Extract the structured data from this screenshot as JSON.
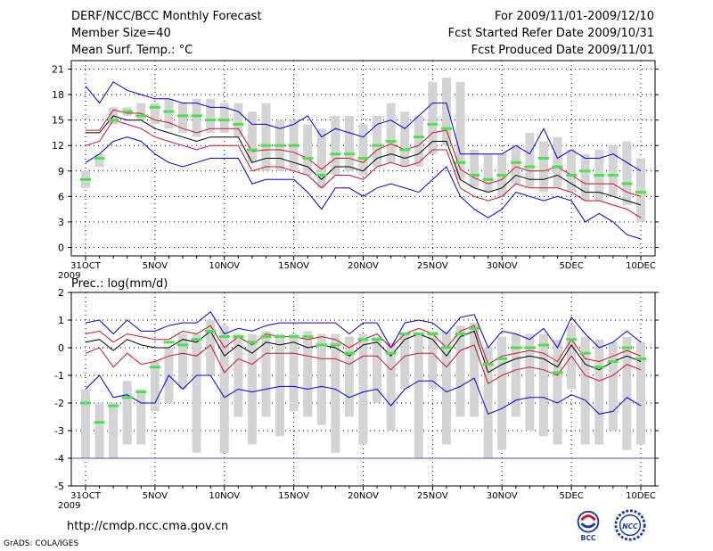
{
  "header": {
    "title_left": "DERF/NCC/BCC Monthly Forecast",
    "member_size": "Member Size=40",
    "variable": "Mean Surf. Temp.: °C",
    "period": "For 2009/11/01-2009/12/10",
    "start_date": "Fcst Started Refer Date 2009/10/31",
    "produced": "Fcst Produced Date 2009/11/01"
  },
  "footer": {
    "url": "http://cmdp.ncc.cma.gov.cn",
    "grads": "GrADS: COLA/IGES",
    "logo_bcc": "BCC",
    "logo_ncc": "NCC"
  },
  "colors": {
    "box": "#d4d4d4",
    "green": "#4be34b",
    "mean": "#000000",
    "inner": "#d0102a",
    "outer": "#0000dd",
    "grid": "#000000"
  },
  "chart_data": [
    {
      "type": "box",
      "title": "Mean Surf. Temp.: °C",
      "ylim": [
        -1,
        22
      ],
      "yticks": [
        0,
        3,
        6,
        9,
        12,
        15,
        18,
        21
      ],
      "xlabels": [
        "31OCT\n2009",
        "5NOV",
        "10NOV",
        "15NOV",
        "20NOV",
        "25NOV",
        "30NOV",
        "5DEC",
        "10DEC"
      ],
      "xlabel_days": [
        0,
        5,
        10,
        15,
        20,
        25,
        30,
        35,
        40
      ],
      "days": [
        0,
        1,
        2,
        3,
        4,
        5,
        6,
        7,
        8,
        9,
        10,
        11,
        12,
        13,
        14,
        15,
        16,
        17,
        18,
        19,
        20,
        21,
        22,
        23,
        24,
        25,
        26,
        27,
        28,
        29,
        30,
        31,
        32,
        33,
        34,
        35,
        36,
        37,
        38,
        39,
        40
      ],
      "box_low": [
        7.0,
        9.5,
        14.5,
        15.5,
        15.0,
        14.5,
        14.0,
        13.5,
        13.0,
        13.5,
        13.5,
        13.0,
        10.0,
        9.0,
        9.0,
        9.0,
        8.5,
        7.0,
        8.5,
        9.0,
        8.5,
        9.5,
        10.0,
        9.5,
        9.5,
        11.0,
        12.0,
        8.0,
        7.0,
        6.5,
        6.0,
        7.5,
        7.0,
        6.5,
        7.0,
        6.5,
        5.5,
        5.5,
        6.0,
        5.0,
        3.0
      ],
      "box_high": [
        9.0,
        11.0,
        16.5,
        16.5,
        17.0,
        17.0,
        17.5,
        17.0,
        17.5,
        17.5,
        17.0,
        17.0,
        16.0,
        17.0,
        15.0,
        15.0,
        14.5,
        14.0,
        15.5,
        15.5,
        14.5,
        15.5,
        17.0,
        16.0,
        15.5,
        19.5,
        20.0,
        19.5,
        11.5,
        11.0,
        11.0,
        12.0,
        13.5,
        12.5,
        13.0,
        11.5,
        11.0,
        11.5,
        12.0,
        12.5,
        10.5
      ],
      "green": [
        8.0,
        10.5,
        15.0,
        16.0,
        15.5,
        16.5,
        16.0,
        15.5,
        15.5,
        15.0,
        15.0,
        14.5,
        11.5,
        12.0,
        12.0,
        12.0,
        10.5,
        8.5,
        11.0,
        11.0,
        10.5,
        12.0,
        12.5,
        11.5,
        13.0,
        14.5,
        14.0,
        10.0,
        8.5,
        8.0,
        8.5,
        10.0,
        9.5,
        10.5,
        9.5,
        8.5,
        9.0,
        8.5,
        8.5,
        7.5,
        6.5
      ],
      "mean": [
        13.5,
        13.5,
        15.5,
        15.0,
        15.0,
        14.0,
        13.5,
        13.0,
        12.5,
        13.0,
        13.0,
        13.0,
        10.0,
        10.5,
        10.5,
        10.0,
        9.5,
        8.0,
        9.5,
        9.5,
        9.0,
        10.5,
        11.0,
        10.5,
        11.0,
        12.5,
        12.5,
        8.0,
        7.0,
        6.5,
        7.0,
        8.5,
        8.0,
        8.0,
        8.5,
        7.5,
        6.5,
        6.5,
        6.0,
        5.5,
        5.0
      ],
      "inner_up": [
        13.8,
        13.8,
        16.2,
        15.8,
        15.8,
        15.0,
        14.7,
        14.0,
        13.5,
        14.0,
        14.0,
        14.0,
        11.3,
        11.5,
        11.5,
        11.2,
        10.5,
        9.2,
        10.5,
        10.5,
        10.0,
        11.5,
        12.2,
        11.5,
        12.0,
        13.5,
        13.8,
        9.2,
        8.2,
        7.5,
        8.0,
        9.5,
        9.0,
        9.0,
        9.5,
        8.5,
        7.5,
        7.5,
        7.5,
        6.5,
        6.0
      ],
      "inner_lo": [
        12.0,
        12.5,
        15.0,
        14.5,
        14.0,
        13.0,
        12.5,
        12.0,
        11.5,
        12.0,
        12.0,
        12.0,
        9.0,
        9.5,
        9.5,
        9.0,
        8.5,
        7.0,
        8.5,
        8.5,
        8.0,
        9.5,
        10.0,
        9.5,
        10.0,
        11.5,
        11.5,
        7.0,
        6.0,
        5.5,
        6.0,
        7.5,
        7.0,
        7.0,
        7.0,
        6.5,
        5.5,
        5.5,
        5.0,
        4.5,
        3.5
      ],
      "outer_up": [
        19.0,
        17.0,
        19.5,
        18.5,
        18.0,
        17.5,
        17.5,
        17.0,
        17.0,
        16.5,
        16.5,
        16.0,
        14.5,
        14.5,
        14.0,
        14.5,
        15.5,
        13.0,
        14.0,
        13.5,
        13.0,
        14.5,
        15.0,
        14.0,
        15.5,
        17.0,
        17.0,
        11.0,
        11.0,
        11.0,
        11.0,
        12.0,
        11.0,
        14.0,
        10.5,
        11.5,
        10.5,
        10.5,
        11.0,
        10.0,
        9.0
      ],
      "outer_lo": [
        10.0,
        11.0,
        12.5,
        13.0,
        12.5,
        11.0,
        10.0,
        9.5,
        10.0,
        10.5,
        10.5,
        10.5,
        7.5,
        8.0,
        8.0,
        8.0,
        6.5,
        4.5,
        7.0,
        7.0,
        6.0,
        7.0,
        7.5,
        7.0,
        6.5,
        8.0,
        9.5,
        6.0,
        4.5,
        3.5,
        4.5,
        6.5,
        6.0,
        5.5,
        6.0,
        5.5,
        3.0,
        4.0,
        3.0,
        1.5,
        1.0
      ]
    },
    {
      "type": "box",
      "title": "Prec.: log(mm/d)",
      "ylim": [
        -5,
        2
      ],
      "yticks": [
        -5,
        -4,
        -3,
        -2,
        -1,
        0,
        1,
        2
      ],
      "xlabels": [
        "31OCT\n2009",
        "5NOV",
        "10NOV",
        "15NOV",
        "20NOV",
        "25NOV",
        "30NOV",
        "5DEC",
        "10DEC"
      ],
      "xlabel_days": [
        0,
        5,
        10,
        15,
        20,
        25,
        30,
        35,
        40
      ],
      "days": [
        0,
        1,
        2,
        3,
        4,
        5,
        6,
        7,
        8,
        9,
        10,
        11,
        12,
        13,
        14,
        15,
        16,
        17,
        18,
        19,
        20,
        21,
        22,
        23,
        24,
        25,
        26,
        27,
        28,
        29,
        30,
        31,
        32,
        33,
        34,
        35,
        36,
        37,
        38,
        39,
        40
      ],
      "box_low": [
        -4.0,
        -4.0,
        -4.0,
        -3.5,
        -3.5,
        -2.3,
        -2.0,
        -1.5,
        -3.8,
        -1.0,
        -3.8,
        -2.5,
        -3.5,
        -2.5,
        -3.2,
        -2.3,
        -2.5,
        -2.8,
        -3.8,
        -2.5,
        -3.5,
        -2.0,
        -3.0,
        -1.5,
        -4.0,
        -1.5,
        -3.5,
        -2.5,
        -2.5,
        -4.0,
        -3.7,
        -2.5,
        -3.0,
        -3.2,
        -3.5,
        -1.5,
        -3.5,
        -3.5,
        -3.0,
        -3.7,
        -3.5
      ],
      "box_high": [
        -1.5,
        -2.0,
        -2.0,
        -1.2,
        -1.5,
        -0.5,
        0.0,
        0.5,
        0.5,
        1.0,
        0.8,
        0.5,
        0.5,
        0.6,
        0.5,
        0.5,
        0.6,
        0.5,
        0.5,
        0.4,
        0.5,
        0.4,
        0.2,
        0.5,
        0.5,
        0.6,
        0.6,
        0.8,
        0.9,
        0.0,
        0.4,
        0.5,
        0.5,
        0.5,
        0.3,
        0.8,
        0.4,
        0.3,
        0.2,
        0.4,
        0.2
      ],
      "green": [
        -2.0,
        -2.7,
        -2.1,
        -1.8,
        -1.6,
        -0.7,
        0.2,
        0.1,
        0.3,
        0.6,
        0.4,
        0.4,
        0.2,
        0.4,
        0.4,
        0.4,
        0.4,
        0.1,
        0.1,
        -0.2,
        0.3,
        0.3,
        -0.2,
        0.5,
        0.5,
        0.5,
        0.0,
        0.5,
        0.7,
        -0.6,
        -0.4,
        0.0,
        0.0,
        0.1,
        -0.9,
        0.3,
        -0.2,
        -0.7,
        -0.5,
        0.0,
        -0.4
      ],
      "mean": [
        0.2,
        0.3,
        -0.1,
        0.3,
        0.1,
        0.0,
        0.0,
        0.3,
        0.2,
        0.6,
        -0.3,
        0.1,
        -0.2,
        0.2,
        0.1,
        0.2,
        0.0,
        0.1,
        0.0,
        -0.3,
        0.1,
        0.2,
        -0.3,
        0.3,
        0.5,
        0.3,
        -0.3,
        0.4,
        0.6,
        -0.9,
        -0.6,
        -0.4,
        -0.3,
        -0.4,
        -0.7,
        0.1,
        -0.6,
        -0.8,
        -0.5,
        -0.3,
        -0.5
      ],
      "inner_up": [
        0.5,
        0.6,
        0.2,
        0.5,
        0.4,
        0.3,
        0.3,
        0.6,
        0.5,
        0.8,
        0.0,
        0.4,
        0.1,
        0.5,
        0.4,
        0.4,
        0.3,
        0.4,
        0.3,
        0.0,
        0.3,
        0.5,
        0.0,
        0.5,
        0.7,
        0.5,
        0.0,
        0.6,
        0.8,
        -0.6,
        -0.3,
        -0.2,
        -0.1,
        -0.2,
        -0.5,
        0.3,
        -0.4,
        -0.5,
        -0.3,
        -0.1,
        -0.3
      ],
      "inner_lo": [
        -0.2,
        0.0,
        -0.7,
        -0.2,
        -0.6,
        -0.5,
        -0.3,
        -0.2,
        -0.3,
        0.1,
        -0.9,
        -0.4,
        -0.6,
        -0.2,
        -0.2,
        -0.2,
        -0.3,
        -0.4,
        -0.4,
        -0.6,
        -0.3,
        -0.3,
        -0.8,
        -0.3,
        -0.2,
        -0.2,
        -0.7,
        -0.1,
        0.1,
        -1.3,
        -1.0,
        -0.8,
        -0.7,
        -0.8,
        -1.0,
        -0.3,
        -1.0,
        -1.2,
        -1.0,
        -0.6,
        -0.8
      ],
      "outer_up": [
        0.9,
        1.0,
        0.5,
        1.0,
        0.6,
        0.6,
        0.8,
        0.9,
        0.9,
        1.3,
        0.5,
        0.7,
        0.6,
        0.8,
        0.9,
        0.9,
        0.9,
        0.9,
        0.9,
        0.5,
        0.9,
        0.9,
        0.0,
        0.9,
        1.0,
        0.9,
        0.5,
        1.1,
        1.2,
        0.0,
        0.6,
        0.5,
        0.3,
        0.7,
        0.0,
        1.1,
        0.5,
        0.0,
        0.2,
        0.6,
        0.2
      ],
      "outer_lo": [
        -1.5,
        -1.0,
        -1.8,
        -1.7,
        -2.0,
        -2.0,
        -1.0,
        -1.5,
        -1.0,
        -1.0,
        -1.8,
        -1.5,
        -1.6,
        -1.5,
        -1.4,
        -1.4,
        -1.5,
        -1.4,
        -1.5,
        -1.8,
        -1.6,
        -1.5,
        -2.1,
        -1.5,
        -1.2,
        -1.2,
        -1.6,
        -1.4,
        -1.1,
        -2.4,
        -2.2,
        -1.9,
        -1.8,
        -1.8,
        -2.0,
        -1.7,
        -1.9,
        -2.4,
        -2.3,
        -1.8,
        -2.1
      ]
    }
  ]
}
